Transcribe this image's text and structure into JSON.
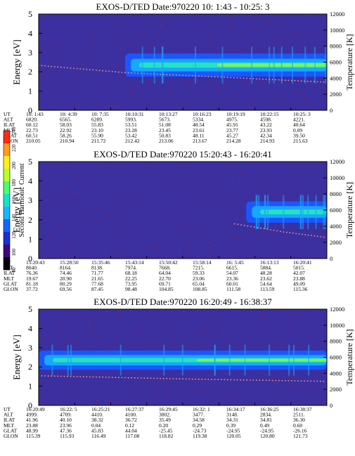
{
  "colorbar": {
    "label": "Second Harmonic Current",
    "ticks": [
      "80",
      "100",
      "120",
      "140",
      "160",
      "180",
      "200",
      "220",
      "240"
    ],
    "colors": [
      "#000000",
      "#3a0a78",
      "#1e2fd0",
      "#1565ff",
      "#16b7ff",
      "#17e3c8",
      "#4cff6a",
      "#b9ff2c",
      "#fff01c",
      "#ff9a1a",
      "#ff2a14"
    ]
  },
  "colors": {
    "background_noise": "#3c2fa0",
    "noise_speck": "#8a2a4a",
    "band_outer": "#1a56ff",
    "band_mid": "#17a8ff",
    "band_inner": "#27e1c0",
    "band_core": "#7cf552",
    "temperature_dots": "#e2a388"
  },
  "chart_data": [
    {
      "type": "heatmap",
      "title": "EXOS-D/TED    Date:970220  10: 1:43 - 10:25: 3",
      "ylabel": "Energy [eV]",
      "y2label": "Temperature [K]",
      "ylim": [
        0,
        5
      ],
      "y2lim": [
        0,
        12000
      ],
      "yticks": [
        "0",
        "1",
        "2",
        "3",
        "4",
        "5"
      ],
      "y2ticks": [
        "0",
        "2000",
        "4000",
        "6000",
        "8000",
        "10000",
        "12000"
      ],
      "band": {
        "onset_fraction": 0.3,
        "center_energy": 2.35,
        "half_width_eV": 0.6,
        "core_from_fraction": 0.62
      },
      "temperature_curve": [
        [
          0,
          5600
        ],
        [
          0.3,
          4700
        ],
        [
          0.6,
          4200
        ],
        [
          1,
          3500
        ]
      ],
      "data_table": {
        "row_labels": [
          "UT",
          "ALT",
          "ILAT",
          "MLT",
          "GLAT",
          "GLON"
        ],
        "columns": [
          [
            "10: 1:43",
            "6820.",
            "60.12",
            "22.73",
            "60.51",
            "210.05"
          ],
          [
            "10: 4:39",
            "6565.",
            "58.03",
            "22.92",
            "58.26",
            "210.94"
          ],
          [
            "10: 7:35",
            "6289.",
            "55.83",
            "23.10",
            "55.90",
            "211.72"
          ],
          [
            "10:10:31",
            "5993.",
            "53.51",
            "23.28",
            "53.42",
            "212.42"
          ],
          [
            "10:13:27",
            "5673.",
            "51.08",
            "23.45",
            "50.83",
            "213.06"
          ],
          [
            "10:16:23",
            "5334.",
            "48.54",
            "23.61",
            "48.11",
            "213.67"
          ],
          [
            "10:19:19",
            "4975.",
            "45.91",
            "23.77",
            "45.27",
            "214.28"
          ],
          [
            "10:22:15",
            "4598.",
            "43.22",
            "23.93",
            "42.34",
            "214.93"
          ],
          [
            "10:25: 3",
            "4221.",
            "40.64",
            "0.09",
            "39.50",
            "215.63"
          ]
        ]
      }
    },
    {
      "type": "heatmap",
      "title": "EXOS-D/TED    Date:970220  15:20:43 - 16:20:41",
      "ylabel": "Energy [eV]",
      "y2label": "Temperature [K]",
      "ylim": [
        0,
        5
      ],
      "y2lim": [
        0,
        12000
      ],
      "yticks": [
        "0",
        "1",
        "2",
        "3",
        "4",
        "5"
      ],
      "y2ticks": [
        "0",
        "2000",
        "4000",
        "6000",
        "8000",
        "10000",
        "12000"
      ],
      "band": {
        "onset_fraction": 0.72,
        "center_energy": 2.4,
        "half_width_eV": 0.55,
        "core_from_fraction": 1.1
      },
      "temperature_curve": [
        [
          0.68,
          4300
        ],
        [
          0.85,
          3300
        ],
        [
          1,
          2600
        ]
      ],
      "data_table": {
        "row_labels": [
          "UT",
          "ALT",
          "ILAT",
          "MLT",
          "GLAT",
          "GLON"
        ],
        "columns": [
          [
            "15:20:43",
            "8040.",
            "76.36",
            "19.67",
            "81.18",
            "37.72"
          ],
          [
            "15:28:50",
            "8164.",
            "74.46",
            "20.90",
            "80.29",
            "69.56"
          ],
          [
            "15:35:46",
            "8138.",
            "71.77",
            "21.65",
            "77.68",
            "87.45"
          ],
          [
            "15:43:14",
            "7974.",
            "68.18",
            "22.25",
            "73.95",
            "98.48"
          ],
          [
            "15:50:42",
            "7668.",
            "64.04",
            "22.70",
            "69.71",
            "104.85"
          ],
          [
            "15:58:14",
            "7215.",
            "59.33",
            "23.06",
            "65.04",
            "108.85"
          ],
          [
            "16: 5:45",
            "6615.",
            "54.07",
            "23.36",
            "60.01",
            "111.58"
          ],
          [
            "16:13:13",
            "5884.",
            "48.28",
            "23.62",
            "54.64",
            "113.59"
          ],
          [
            "16:20:41",
            "5015.",
            "42.07",
            "23.88",
            "49.09",
            "115.36"
          ]
        ]
      }
    },
    {
      "type": "heatmap",
      "title": "EXOS-D/TED    Date:970220  16:20:49 - 16:38:37",
      "ylabel": "Energy [eV]",
      "y2label": "Temperature [K]",
      "ylim": [
        0,
        5
      ],
      "y2lim": [
        0,
        12000
      ],
      "yticks": [
        "0",
        "1",
        "2",
        "3",
        "4",
        "5"
      ],
      "y2ticks": [
        "0",
        "2000",
        "4000",
        "6000",
        "8000",
        "10000",
        "12000"
      ],
      "band": {
        "onset_fraction": 0,
        "center_energy": 2.35,
        "half_width_eV": 0.5,
        "core_from_fraction": 0.55
      },
      "temperature_curve": [
        [
          0,
          3700
        ],
        [
          0.5,
          3300
        ],
        [
          1,
          3000
        ]
      ],
      "data_table": {
        "row_labels": [
          "UT",
          "ALT",
          "ILAT",
          "MLT",
          "GLAT",
          "GLON"
        ],
        "columns": [
          [
            "16:20:49",
            "4999.",
            "41.96",
            "23.88",
            "48.99",
            "115.39"
          ],
          [
            "16:22: 5",
            "4709.",
            "40.10",
            "23.96",
            "47.36",
            "115.93"
          ],
          [
            "16:25:21",
            "4410.",
            "38.32",
            "0.04",
            "45.83",
            "116.49"
          ],
          [
            "16:27:37",
            "4100.",
            "36.72",
            "0.12",
            "44.04",
            "117.08"
          ],
          [
            "16:29:45",
            "3802.",
            "35.49",
            "0.20",
            "-25.45",
            "118.82"
          ],
          [
            "16:32: 1",
            "3477.",
            "34.58",
            "0.29",
            "-24.73",
            "119.38"
          ],
          [
            "16:34:17",
            "3148.",
            "34.31",
            "0.39",
            "-24.95",
            "120.05"
          ],
          [
            "16:36:25",
            "2834.",
            "34.81",
            "0.49",
            "-24.95",
            "120.80"
          ],
          [
            "16:38:37",
            "2511.",
            "36.30",
            "0.60",
            "-26.16",
            "121.73"
          ]
        ]
      }
    }
  ]
}
